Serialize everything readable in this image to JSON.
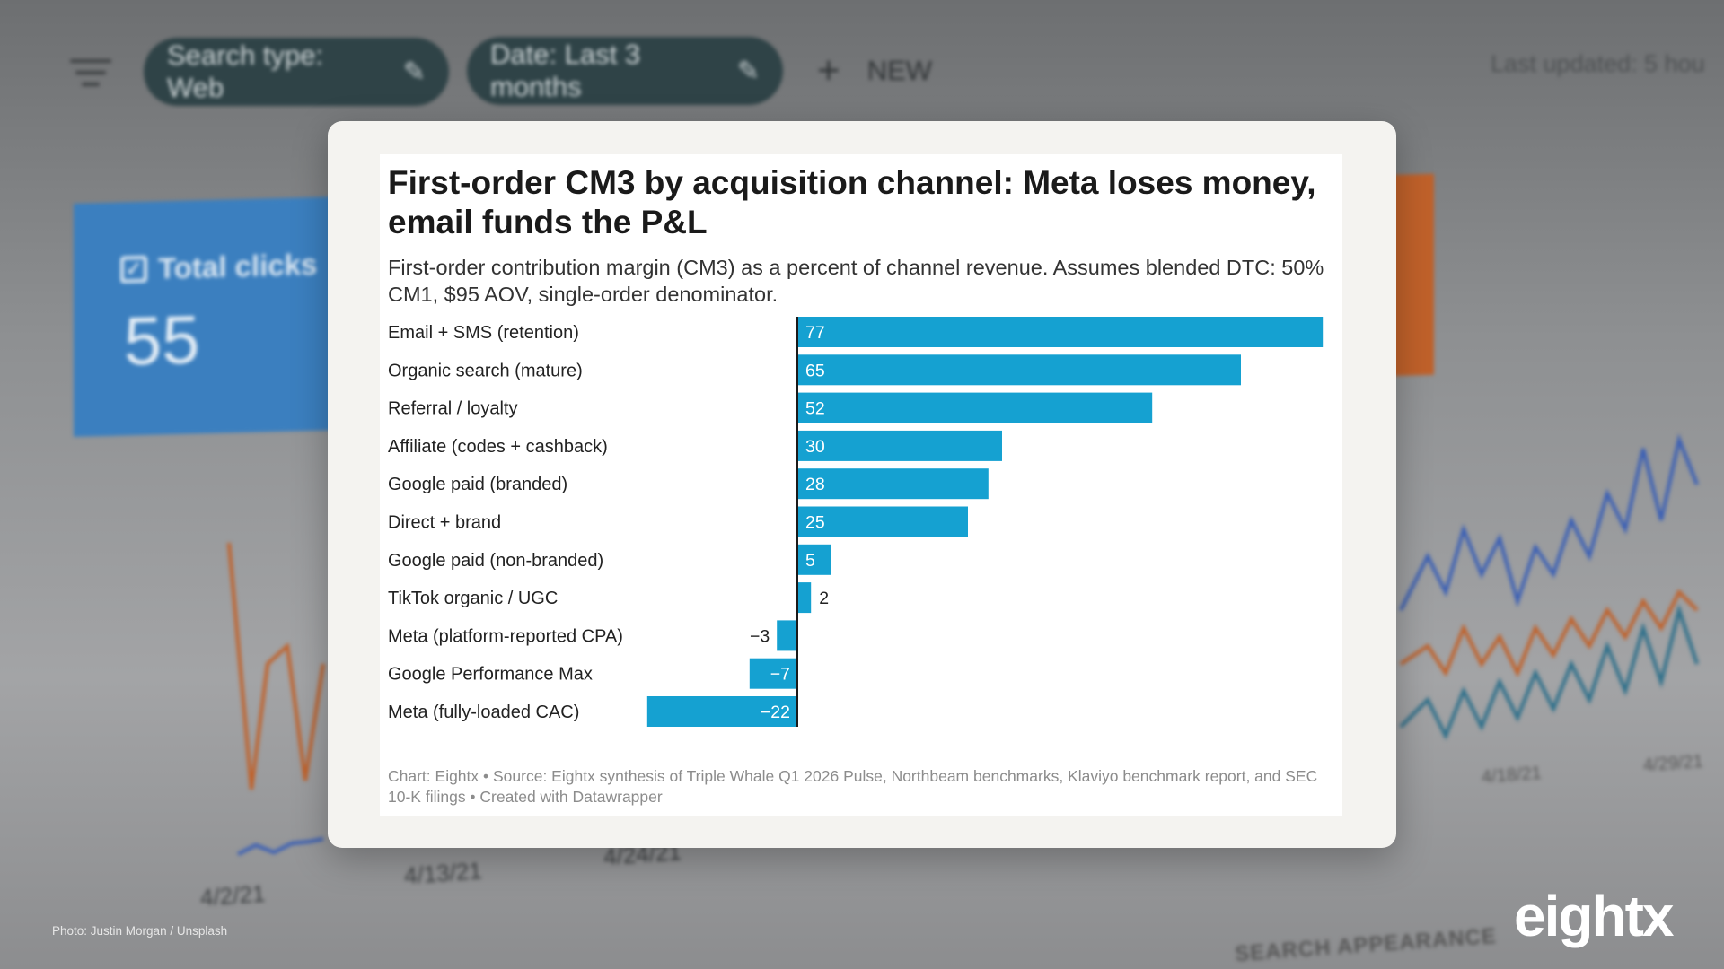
{
  "background": {
    "filter_chips": [
      {
        "label": "Search type: Web"
      },
      {
        "label": "Date: Last 3 months"
      }
    ],
    "new_button": {
      "label": "NEW"
    },
    "last_updated": "Last updated: 5 hou",
    "total_clicks": {
      "label": "Total clicks",
      "value": "55"
    },
    "dates": [
      "4/2/21",
      "4/13/21",
      "4/24/21",
      "4/18/21",
      "4/29/21"
    ],
    "search_appearance": "SEARCH APPEARANCE",
    "photo_credit": "Photo: Justin Morgan / Unsplash",
    "logo": "eightx"
  },
  "chart_data": {
    "type": "bar",
    "orientation": "horizontal",
    "title": "First-order CM3 by acquisition channel: Meta loses money, email funds the P&L",
    "subtitle": "First-order contribution margin (CM3) as a percent of channel revenue. Assumes blended DTC: 50% CM1, $95 AOV, single-order denominator.",
    "categories": [
      "Email + SMS (retention)",
      "Organic search (mature)",
      "Referral / loyalty",
      "Affiliate (codes + cashback)",
      "Google paid (branded)",
      "Direct + brand",
      "Google paid (non-branded)",
      "TikTok organic / UGC",
      "Meta (platform-reported CPA)",
      "Google Performance Max",
      "Meta (fully-loaded CAC)"
    ],
    "values": [
      77,
      65,
      52,
      30,
      28,
      25,
      5,
      2,
      -3,
      -7,
      -22
    ],
    "value_labels": [
      "77",
      "65",
      "52",
      "30",
      "28",
      "25",
      "5",
      "2",
      "−3",
      "−7",
      "−22"
    ],
    "xlim": [
      -22,
      77
    ],
    "bar_color": "#15a1d1",
    "footer": "Chart: Eightx • Source: Eightx synthesis of Triple Whale Q1 2026 Pulse, Northbeam benchmarks, Klaviyo benchmark report, and SEC 10-K filings • Created with Datawrapper"
  }
}
